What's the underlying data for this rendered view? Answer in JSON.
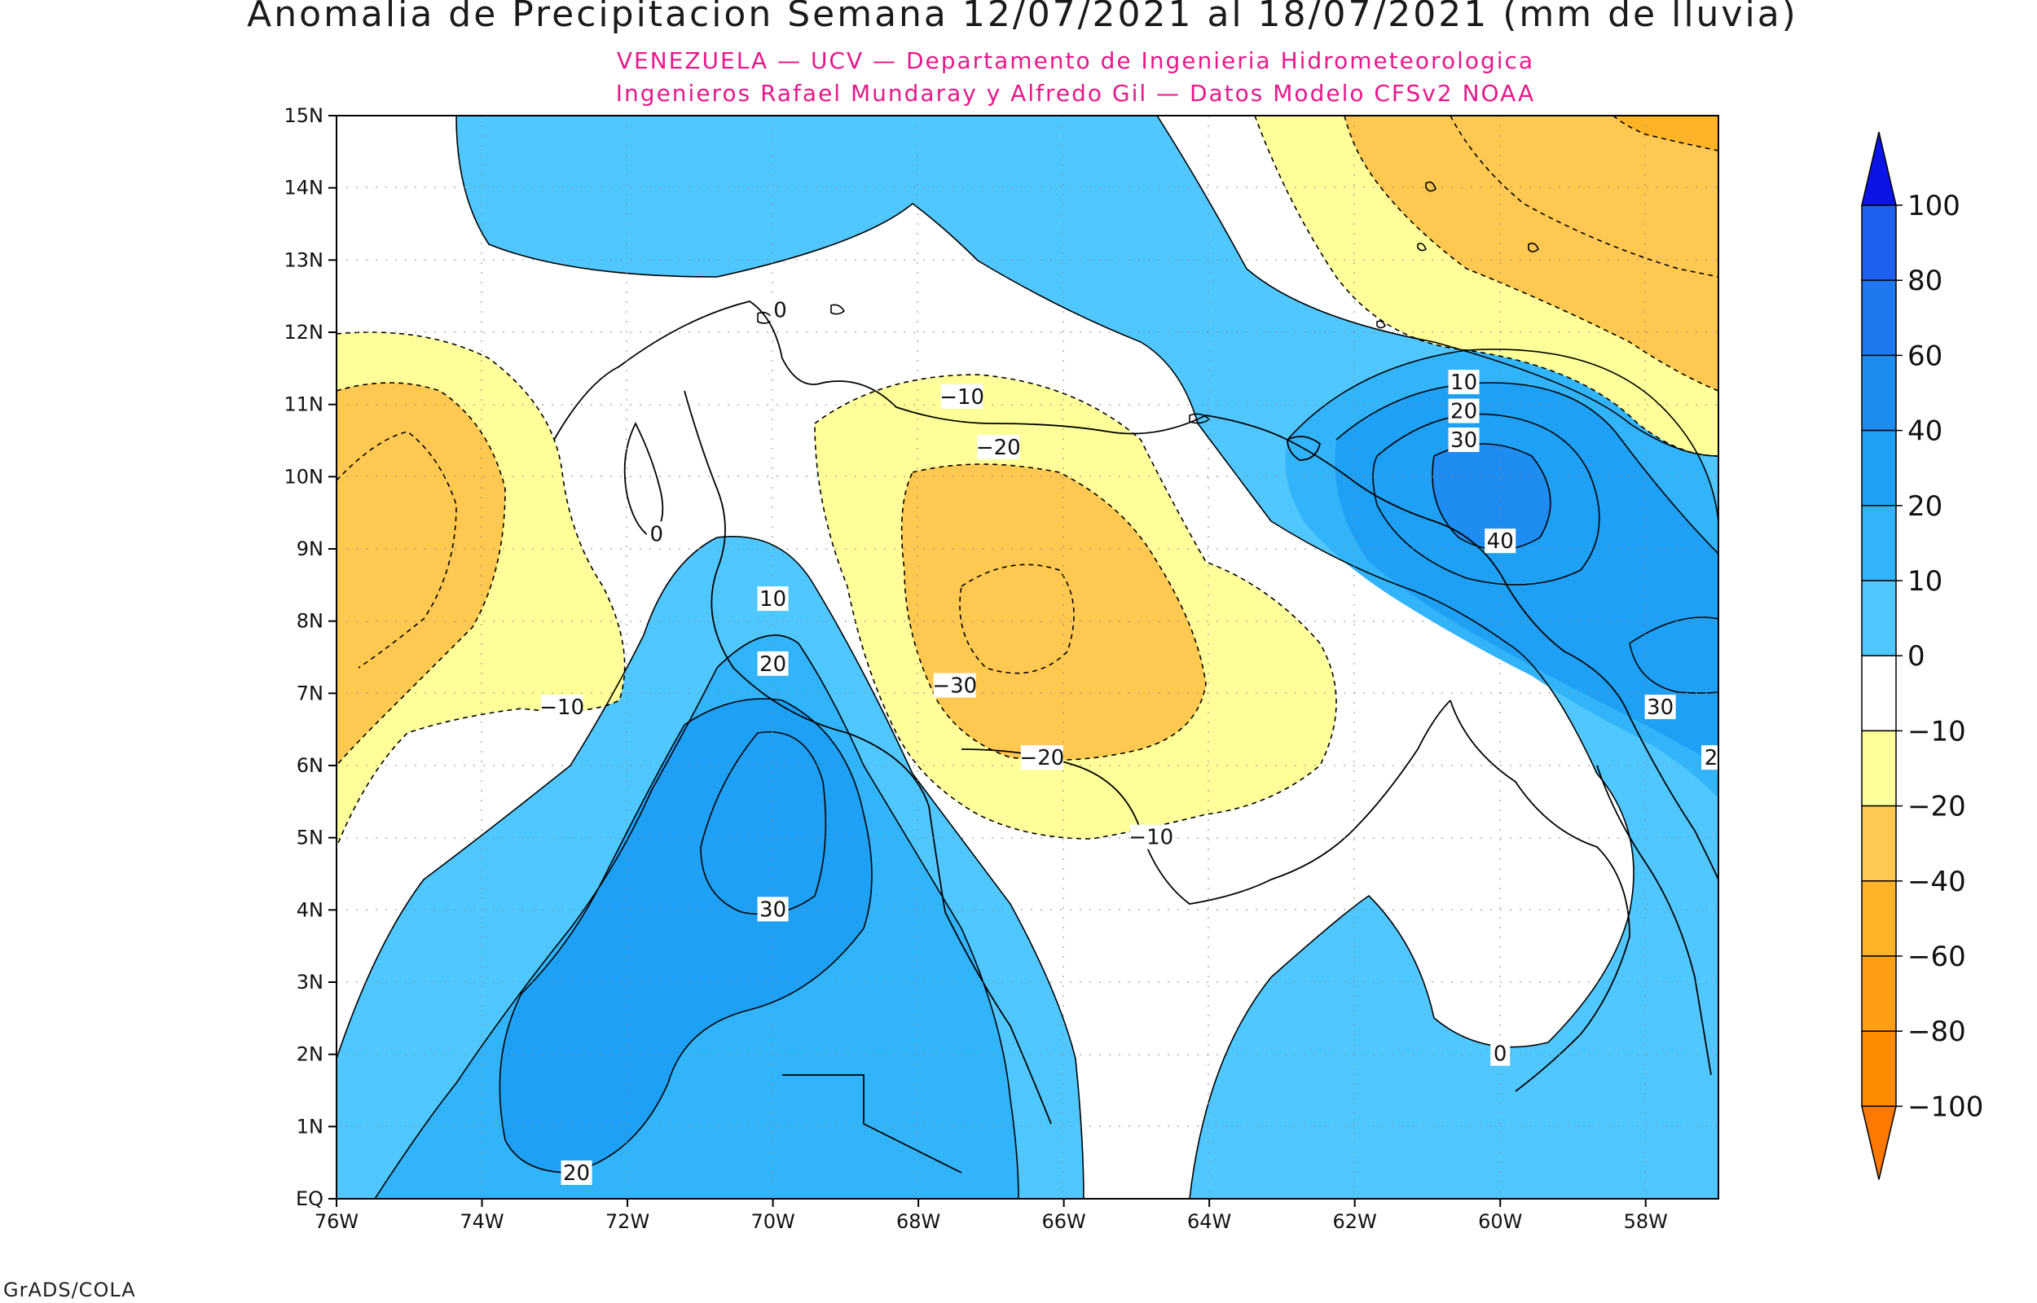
{
  "title": "Anomalia de Precipitacion Semana 12/07/2021 al 18/07/2021 (mm de lluvia)",
  "subtitle_lines": [
    "VENEZUELA — UCV — Departamento de Ingenieria Hidrometeorologica",
    "Ingenieros Rafael Mundaray y Alfredo Gil — Datos Modelo CFSv2 NOAA"
  ],
  "credit": "GrADS/COLA",
  "colors": {
    "subtitle": "#e6198a",
    "land_outline": "#000000",
    "c_pos100": "#0a14e6",
    "c_pos80": "#1e5ff0",
    "c_pos60": "#1e78f0",
    "c_pos40": "#1e8cf0",
    "c_pos20": "#1ea0f5",
    "c_pos10": "#32b4fa",
    "c_pos0": "#50c8ff",
    "c_neutral": "#ffffff",
    "c_neg10": "#ffff9a",
    "c_neg20": "#ffc850",
    "c_neg40": "#ffb428",
    "c_neg60": "#ffa014",
    "c_neg80": "#ff8c00",
    "c_neg100": "#ff7800"
  },
  "axes": {
    "lon_ticks": [
      "76W",
      "74W",
      "72W",
      "70W",
      "68W",
      "66W",
      "64W",
      "62W",
      "60W",
      "58W"
    ],
    "lat_ticks": [
      "EQ",
      "1N",
      "2N",
      "3N",
      "4N",
      "5N",
      "6N",
      "7N",
      "8N",
      "9N",
      "10N",
      "11N",
      "12N",
      "13N",
      "14N",
      "15N"
    ],
    "lon_range": [
      -76,
      -57
    ],
    "lat_range": [
      0,
      15
    ]
  },
  "colorbar": {
    "labels": [
      "100",
      "80",
      "60",
      "40",
      "20",
      "10",
      "0",
      "−10",
      "−20",
      "−40",
      "−60",
      "−80",
      "−100"
    ],
    "colors_top_to_bottom": [
      "c_pos100",
      "c_pos80",
      "c_pos60",
      "c_pos40",
      "c_pos20",
      "c_pos10",
      "c_pos0",
      "c_neutral",
      "c_neg10",
      "c_neg20",
      "c_neg40",
      "c_neg60",
      "c_neg80",
      "c_neg100"
    ]
  },
  "contour_labels": [
    {
      "text": "0",
      "lon": -69.9,
      "lat": 12.3
    },
    {
      "text": "−10",
      "lon": -67.4,
      "lat": 11.1
    },
    {
      "text": "−20",
      "lon": -66.9,
      "lat": 10.4
    },
    {
      "text": "0",
      "lon": -71.6,
      "lat": 9.2
    },
    {
      "text": "10",
      "lon": -70.0,
      "lat": 8.3
    },
    {
      "text": "20",
      "lon": -70.0,
      "lat": 7.4
    },
    {
      "text": "−30",
      "lon": -67.5,
      "lat": 7.1
    },
    {
      "text": "−20",
      "lon": -66.3,
      "lat": 6.1
    },
    {
      "text": "−10",
      "lon": -72.9,
      "lat": 6.8
    },
    {
      "text": "−10",
      "lon": -64.8,
      "lat": 5.0
    },
    {
      "text": "30",
      "lon": -70.0,
      "lat": 4.0
    },
    {
      "text": "20",
      "lon": -72.7,
      "lat": 0.35
    },
    {
      "text": "10",
      "lon": -60.5,
      "lat": 11.3
    },
    {
      "text": "20",
      "lon": -60.5,
      "lat": 10.9
    },
    {
      "text": "30",
      "lon": -60.5,
      "lat": 10.5
    },
    {
      "text": "40",
      "lon": -60.0,
      "lat": 9.1
    },
    {
      "text": "30",
      "lon": -57.8,
      "lat": 6.8
    },
    {
      "text": "2",
      "lon": -57.1,
      "lat": 6.1
    },
    {
      "text": "0",
      "lon": -60.0,
      "lat": 2.0
    }
  ]
}
